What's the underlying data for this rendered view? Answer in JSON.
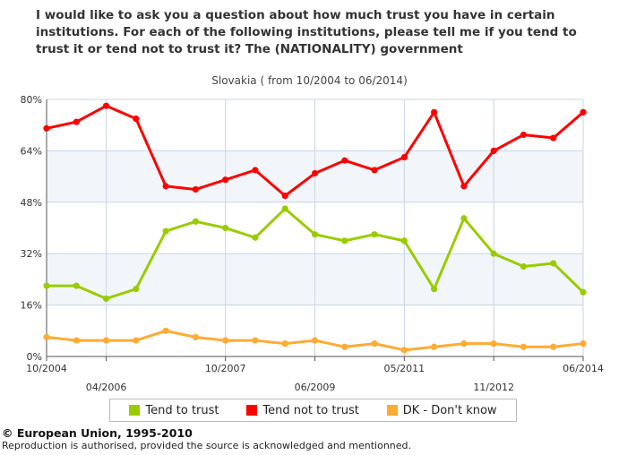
{
  "title": "I would like to ask you a question about how much trust you have in certain institutions. For each of the following institutions, please tell me if you tend to trust it or tend not to trust it? The (NATIONALITY) government",
  "subtitle": "Slovakia ( from 10/2004 to 06/2014)",
  "footer": {
    "copyright": "© European Union, 1995-2010",
    "note": "Reproduction is authorised, provided the source is acknowledged and mentionned."
  },
  "chart_data": {
    "type": "line",
    "title": "Slovakia ( from 10/2004 to 06/2014)",
    "xlabel": "",
    "ylabel": "",
    "ylim": [
      0,
      80
    ],
    "yticks": [
      "0%",
      "16%",
      "32%",
      "48%",
      "64%",
      "80%"
    ],
    "xtick_labels": [
      {
        "index": 0,
        "label": "10/2004",
        "row": 0
      },
      {
        "index": 2,
        "label": "04/2006",
        "row": 1
      },
      {
        "index": 6,
        "label": "10/2007",
        "row": 0
      },
      {
        "index": 9,
        "label": "06/2009",
        "row": 1
      },
      {
        "index": 12,
        "label": "05/2011",
        "row": 0
      },
      {
        "index": 15,
        "label": "11/2012",
        "row": 1
      },
      {
        "index": 18,
        "label": "06/2014",
        "row": 0
      }
    ],
    "point_count": 19,
    "grid": true,
    "legend_position": "bottom",
    "series": [
      {
        "name": "Tend to trust",
        "color": "#99cc00",
        "values": [
          22,
          22,
          18,
          21,
          39,
          42,
          40,
          37,
          46,
          38,
          36,
          38,
          36,
          21,
          43,
          32,
          28,
          29,
          20
        ]
      },
      {
        "name": "Tend not to trust",
        "color": "#ff0000",
        "values": [
          71,
          73,
          78,
          74,
          53,
          52,
          55,
          58,
          50,
          57,
          61,
          58,
          62,
          76,
          53,
          64,
          69,
          68,
          76
        ]
      },
      {
        "name": "DK - Don't know",
        "color": "#ffaa33",
        "values": [
          6,
          5,
          5,
          5,
          8,
          6,
          5,
          5,
          4,
          5,
          3,
          4,
          2,
          3,
          4,
          4,
          3,
          3,
          4
        ]
      }
    ]
  }
}
